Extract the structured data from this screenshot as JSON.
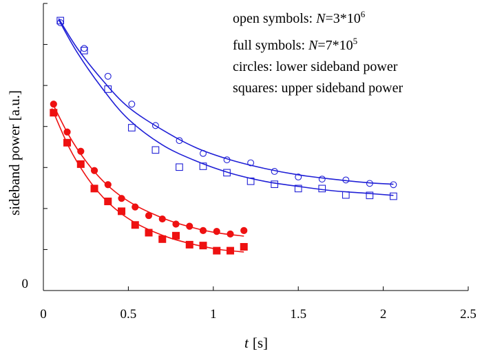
{
  "chart_data": {
    "type": "scatter",
    "xlabel_var": "t",
    "xlabel_unit": "[s]",
    "ylabel": "sideband power [a.u.]",
    "xlim": [
      0,
      2.5
    ],
    "ylim": [
      0,
      6.7
    ],
    "x_ticks": [
      "0",
      "0.5",
      "1",
      "1.5",
      "2",
      "2.5"
    ],
    "y_tick_label": "0",
    "grid": false,
    "legend": {
      "placement": "top-right",
      "lines": [
        {
          "prefix": "open symbols: ",
          "var": "N",
          "value": "=3*10",
          "sup": "6"
        },
        {
          "prefix": "full symbols: ",
          "var": "N",
          "value": "=7*10",
          "sup": "5"
        },
        {
          "prefix": "circles: lower sideband power",
          "var": "",
          "value": "",
          "sup": ""
        },
        {
          "prefix": "squares: upper sideband power",
          "var": "",
          "value": "",
          "sup": ""
        }
      ]
    },
    "colors": {
      "open": "#1f1fd6",
      "full": "#ee1111"
    },
    "series": [
      {
        "group": "open",
        "marker": "circle",
        "filled": false,
        "x": [
          0.1,
          0.24,
          0.38,
          0.52,
          0.66,
          0.8,
          0.94,
          1.08,
          1.22,
          1.36,
          1.5,
          1.64,
          1.78,
          1.92,
          2.06
        ],
        "y": [
          6.25,
          5.65,
          5.0,
          4.35,
          3.85,
          3.5,
          3.2,
          3.05,
          2.98,
          2.78,
          2.65,
          2.6,
          2.58,
          2.5,
          2.47
        ],
        "fit_x": [
          0.09,
          0.2,
          0.35,
          0.5,
          0.7,
          0.9,
          1.1,
          1.3,
          1.5,
          1.7,
          1.9,
          2.06
        ],
        "fit_y": [
          6.35,
          5.65,
          4.9,
          4.28,
          3.75,
          3.33,
          3.05,
          2.85,
          2.7,
          2.6,
          2.52,
          2.48
        ]
      },
      {
        "group": "open",
        "marker": "square",
        "filled": false,
        "x": [
          0.1,
          0.24,
          0.38,
          0.52,
          0.66,
          0.8,
          0.94,
          1.08,
          1.22,
          1.36,
          1.5,
          1.64,
          1.78,
          1.92,
          2.06
        ],
        "y": [
          6.3,
          5.6,
          4.7,
          3.8,
          3.28,
          2.88,
          2.9,
          2.75,
          2.55,
          2.48,
          2.38,
          2.38,
          2.23,
          2.22,
          2.2
        ],
        "fit_x": [
          0.09,
          0.2,
          0.35,
          0.5,
          0.7,
          0.9,
          1.1,
          1.3,
          1.5,
          1.7,
          1.9,
          2.06
        ],
        "fit_y": [
          6.32,
          5.55,
          4.7,
          4.0,
          3.4,
          3.02,
          2.74,
          2.55,
          2.43,
          2.33,
          2.27,
          2.22
        ]
      },
      {
        "group": "full",
        "marker": "circle",
        "filled": true,
        "x": [
          0.06,
          0.14,
          0.22,
          0.3,
          0.38,
          0.46,
          0.54,
          0.62,
          0.7,
          0.78,
          0.86,
          0.94,
          1.02,
          1.1,
          1.18
        ],
        "y": [
          4.35,
          3.7,
          3.25,
          2.8,
          2.47,
          2.15,
          1.95,
          1.75,
          1.67,
          1.55,
          1.5,
          1.4,
          1.38,
          1.32,
          1.4
        ],
        "fit_x": [
          0.05,
          0.15,
          0.25,
          0.35,
          0.45,
          0.55,
          0.65,
          0.75,
          0.85,
          0.95,
          1.05,
          1.18
        ],
        "fit_y": [
          4.4,
          3.62,
          3.02,
          2.56,
          2.22,
          1.97,
          1.78,
          1.62,
          1.5,
          1.4,
          1.33,
          1.27
        ]
      },
      {
        "group": "full",
        "marker": "square",
        "filled": true,
        "x": [
          0.06,
          0.14,
          0.22,
          0.3,
          0.38,
          0.46,
          0.54,
          0.62,
          0.7,
          0.78,
          0.86,
          0.94,
          1.02,
          1.1,
          1.18
        ],
        "y": [
          4.15,
          3.45,
          2.95,
          2.38,
          2.08,
          1.85,
          1.53,
          1.35,
          1.2,
          1.28,
          1.07,
          1.05,
          0.93,
          0.93,
          1.02
        ],
        "fit_x": [
          0.05,
          0.15,
          0.25,
          0.35,
          0.45,
          0.55,
          0.65,
          0.75,
          0.85,
          0.95,
          1.05,
          1.18
        ],
        "fit_y": [
          4.25,
          3.35,
          2.68,
          2.18,
          1.82,
          1.56,
          1.37,
          1.22,
          1.11,
          1.02,
          0.95,
          0.9
        ]
      }
    ]
  }
}
